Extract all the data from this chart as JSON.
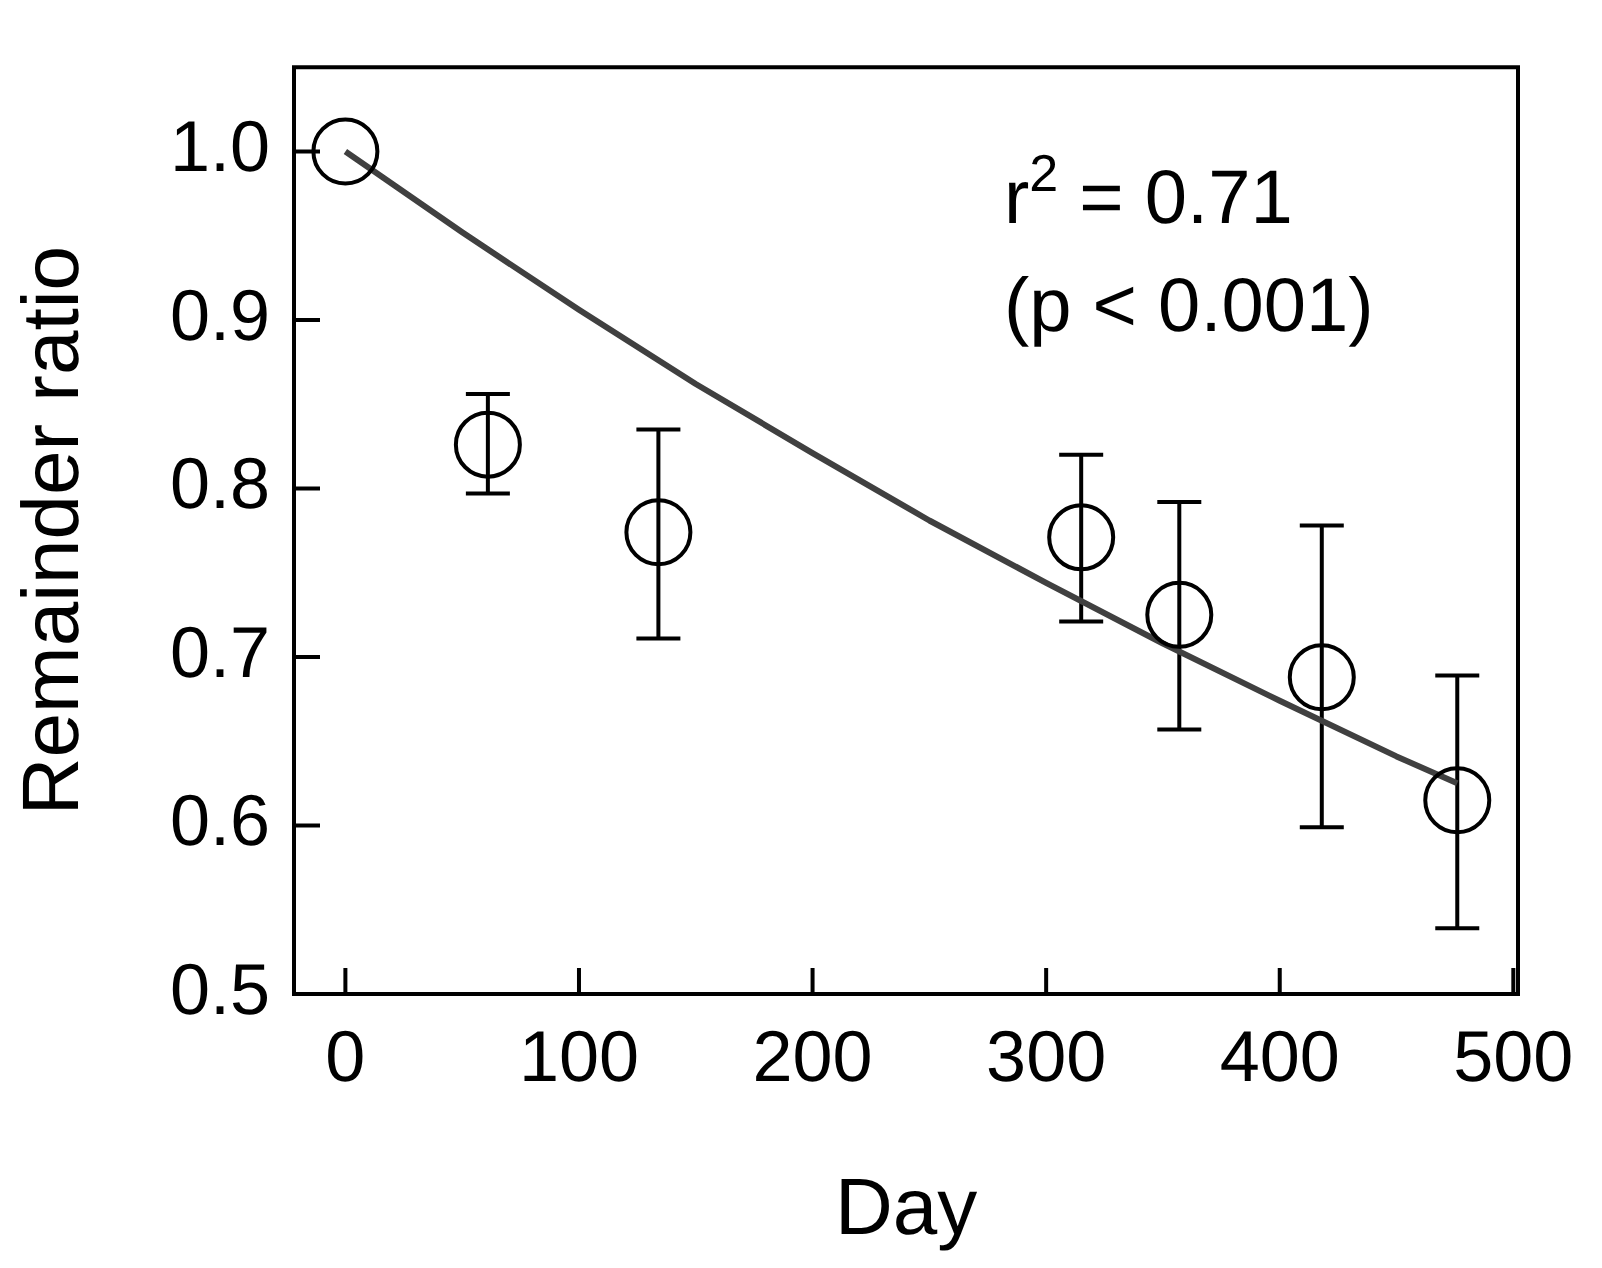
{
  "chart_data": {
    "type": "scatter",
    "xlabel": "Day",
    "ylabel": "Remainder ratio",
    "annotations": [
      "r$^{2}$ = 0.71",
      "(p < 0.001)"
    ],
    "series": [
      {
        "color": "#000000",
        "x": [
          0,
          61,
          134,
          315,
          357,
          418,
          476
        ],
        "values": [
          1.0,
          0.826,
          0.774,
          0.771,
          0.725,
          0.688,
          0.615
        ],
        "errors": [
          null,
          [
            0.797,
            0.856
          ],
          [
            0.711,
            0.835
          ],
          [
            0.721,
            0.82
          ],
          [
            0.657,
            0.792
          ],
          [
            0.599,
            0.778
          ],
          [
            0.539,
            0.689
          ]
        ],
        "marker": "circle"
      },
      {
        "type": "line",
        "color": "#404040",
        "x": [
          0,
          50,
          100,
          150,
          200,
          250,
          300,
          350,
          400,
          450,
          476
        ],
        "values": [
          1.0,
          0.952,
          0.906,
          0.862,
          0.821,
          0.781,
          0.744,
          0.708,
          0.674,
          0.641,
          0.625
        ],
        "marker": "none",
        "line_style": "solid"
      }
    ],
    "xlim": [
      -22,
      502
    ],
    "xticks": [
      0,
      100,
      200,
      300,
      400,
      500
    ],
    "ylim": [
      0.5,
      1.05
    ],
    "yticks": [
      0.5,
      0.6,
      0.7,
      0.8,
      0.9,
      {
        "value": 1,
        "label": "1.0"
      }
    ],
    "grid": false,
    "legend": false
  }
}
